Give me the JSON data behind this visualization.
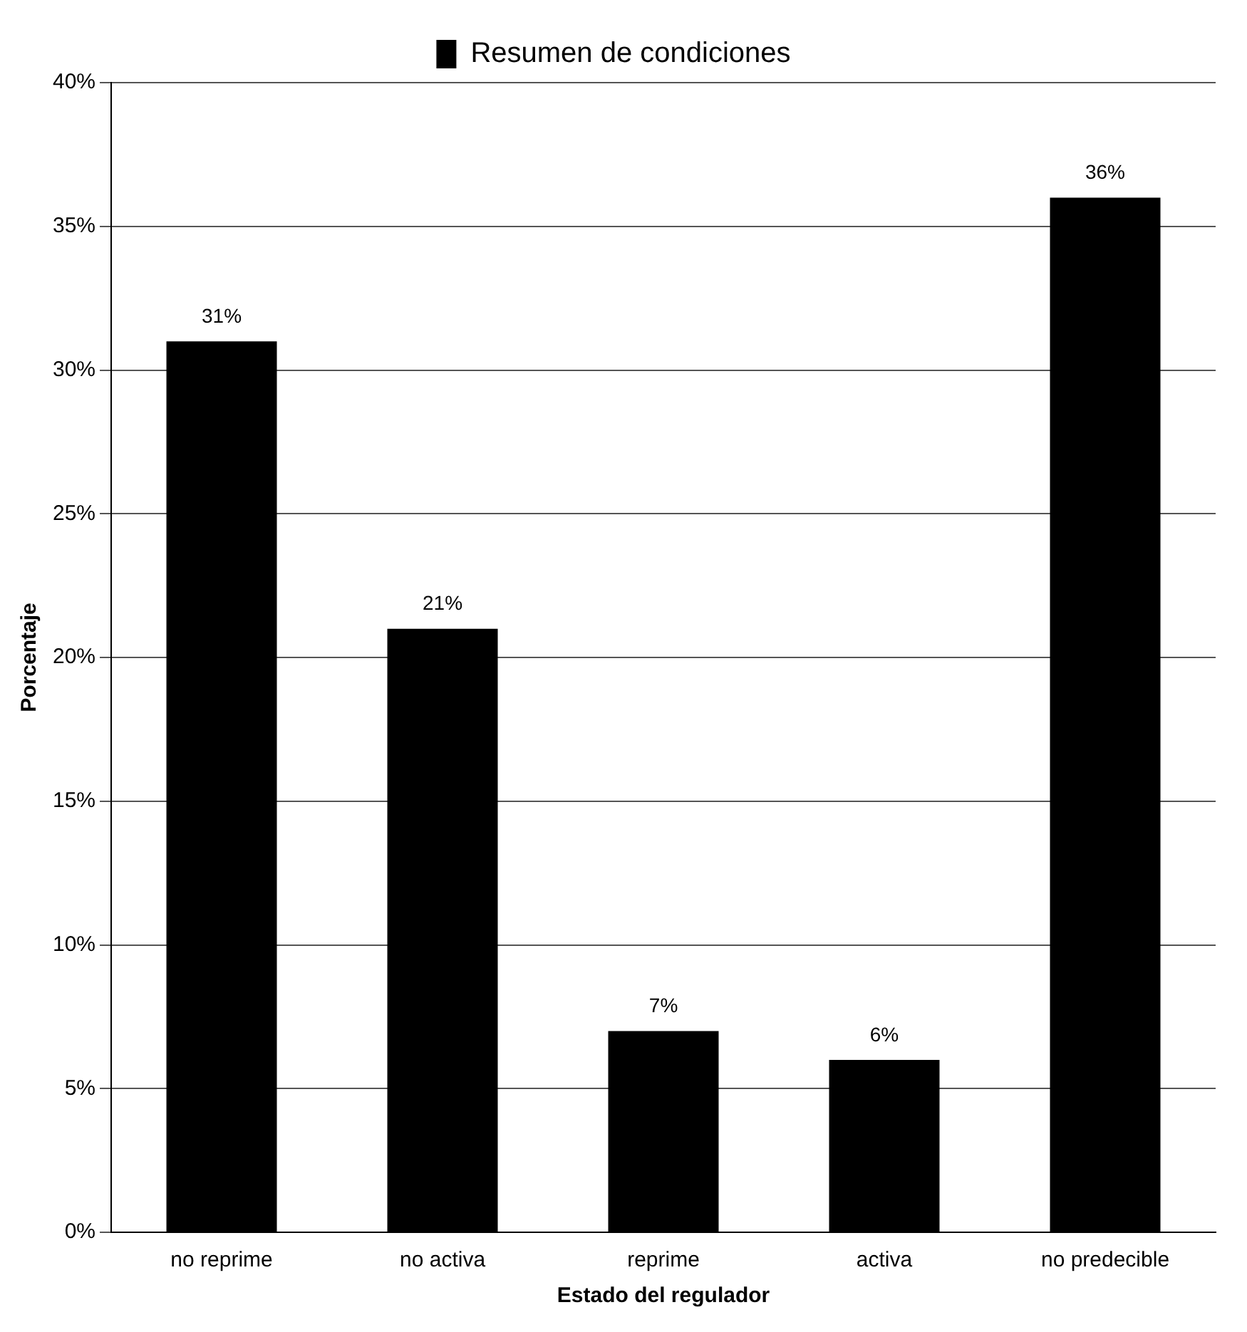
{
  "chart_data": {
    "type": "bar",
    "xlabel": "Estado del regulador",
    "ylabel": "Porcentaje",
    "categories": [
      "no reprime",
      "no activa",
      "reprime",
      "activa",
      "no predecible"
    ],
    "series": [
      {
        "name": "Resumen de condiciones",
        "color": "#000000",
        "values": [
          31,
          21,
          7,
          6,
          36
        ]
      }
    ],
    "value_labels": [
      "31%",
      "21%",
      "7%",
      "6%",
      "36%"
    ],
    "ylim": [
      0,
      40
    ],
    "yticks": [
      {
        "value": 0,
        "label": "0%"
      },
      {
        "value": 5,
        "label": "5%"
      },
      {
        "value": 10,
        "label": "10%"
      },
      {
        "value": 15,
        "label": "15%"
      },
      {
        "value": 20,
        "label": "20%"
      },
      {
        "value": 25,
        "label": "25%"
      },
      {
        "value": 30,
        "label": "30%"
      },
      {
        "value": 35,
        "label": "35%"
      },
      {
        "value": 40,
        "label": "40%"
      }
    ],
    "grid": "y",
    "legend": "top"
  }
}
